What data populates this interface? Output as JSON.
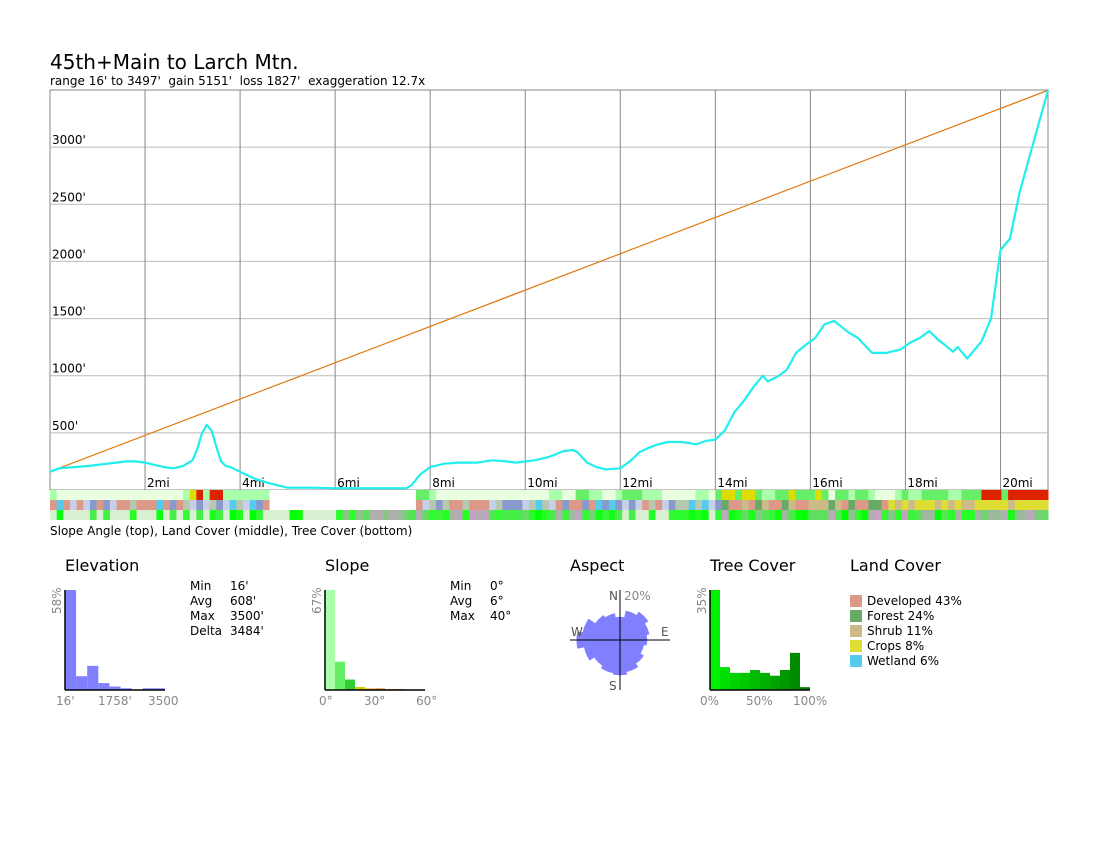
{
  "header": {
    "title": "45th+Main to Larch Mtn.",
    "subtitle": "range 16' to 3497'  gain 5151'  loss 1827'  exaggeration 12.7x"
  },
  "chart_data": {
    "type": "line",
    "x_unit": "mi",
    "y_unit": "ft",
    "xlim": [
      0,
      21
    ],
    "ylim": [
      0,
      3500
    ],
    "x_ticks": [
      {
        "value": 2,
        "label": "2mi"
      },
      {
        "value": 4,
        "label": "4mi"
      },
      {
        "value": 6,
        "label": "6mi"
      },
      {
        "value": 8,
        "label": "8mi"
      },
      {
        "value": 10,
        "label": "10mi"
      },
      {
        "value": 12,
        "label": "12mi"
      },
      {
        "value": 14,
        "label": "14mi"
      },
      {
        "value": 16,
        "label": "16mi"
      },
      {
        "value": 18,
        "label": "18mi"
      },
      {
        "value": 20,
        "label": "20mi"
      }
    ],
    "y_ticks": [
      {
        "value": 500,
        "label": "500'"
      },
      {
        "value": 1000,
        "label": "1000'"
      },
      {
        "value": 1500,
        "label": "1500'"
      },
      {
        "value": 2000,
        "label": "2000'"
      },
      {
        "value": 2500,
        "label": "2500'"
      },
      {
        "value": 3000,
        "label": "3000'"
      }
    ],
    "grid": true,
    "series": [
      {
        "color": "#22eeee",
        "x": [
          0,
          0.2,
          0.5,
          0.8,
          1.0,
          1.2,
          1.4,
          1.6,
          1.8,
          2.0,
          2.2,
          2.4,
          2.6,
          2.8,
          3.0,
          3.1,
          3.2,
          3.3,
          3.4,
          3.5,
          3.6,
          3.7,
          3.8,
          4.0,
          4.3,
          4.6,
          4.8,
          5.0,
          5.5,
          6.0,
          6.5,
          7.0,
          7.3,
          7.5,
          7.6,
          7.8,
          8.0,
          8.3,
          8.6,
          9.0,
          9.3,
          9.6,
          9.8,
          10.2,
          10.5,
          10.8,
          11.0,
          11.1,
          11.3,
          11.5,
          11.7,
          12.0,
          12.2,
          12.4,
          12.6,
          12.8,
          13.0,
          13.3,
          13.6,
          13.8,
          14.0,
          14.2,
          14.4,
          14.6,
          14.8,
          15.0,
          15.1,
          15.3,
          15.5,
          15.7,
          15.9,
          16.1,
          16.3,
          16.5,
          16.8,
          17.0,
          17.3,
          17.6,
          17.9,
          18.1,
          18.3,
          18.5,
          18.7,
          18.8,
          19.0,
          19.1,
          19.3,
          19.6,
          19.8,
          20.0,
          20.2,
          20.4,
          20.6,
          20.8,
          21.0
        ],
        "y": [
          160,
          190,
          200,
          210,
          220,
          230,
          240,
          250,
          250,
          240,
          220,
          200,
          190,
          210,
          260,
          360,
          500,
          570,
          520,
          380,
          250,
          210,
          200,
          160,
          100,
          60,
          40,
          20,
          20,
          16,
          16,
          16,
          16,
          16,
          40,
          140,
          200,
          230,
          240,
          240,
          260,
          250,
          240,
          260,
          290,
          340,
          350,
          330,
          240,
          200,
          180,
          190,
          250,
          330,
          370,
          400,
          420,
          420,
          400,
          430,
          440,
          520,
          680,
          780,
          900,
          1000,
          950,
          990,
          1050,
          1200,
          1270,
          1330,
          1450,
          1480,
          1380,
          1330,
          1200,
          1200,
          1230,
          1290,
          1330,
          1390,
          1310,
          1280,
          1210,
          1250,
          1150,
          1300,
          1500,
          2100,
          2200,
          2600,
          2900,
          3200,
          3497
        ]
      },
      {
        "color": "#e07810",
        "x": [
          0,
          21
        ],
        "y": [
          160,
          3497
        ]
      }
    ]
  },
  "strips": {
    "caption": "Slope Angle (top), Land Cover (middle), Tree Cover (bottom)"
  },
  "panels": {
    "elevation": {
      "title": "Elevation",
      "ymax_label": "58%",
      "x_labels": [
        "16'",
        "1758'",
        "3500"
      ],
      "stat_keys": [
        "Min",
        "Avg",
        "Max",
        "Delta"
      ],
      "stat_values": [
        "16'",
        "608'",
        "3500'",
        "3484'"
      ],
      "bar_color": "#8080ff",
      "histogram": [
        58,
        8,
        14,
        4,
        2,
        1,
        0,
        1,
        1
      ]
    },
    "slope": {
      "title": "Slope",
      "ymax_label": "67%",
      "x_labels": [
        "0°",
        "30°",
        "60°"
      ],
      "stat_keys": [
        "Min",
        "Avg",
        "Max"
      ],
      "stat_values": [
        "0°",
        "6°",
        "40°"
      ],
      "histogram": [
        67,
        19,
        7,
        2,
        1,
        1,
        0.5,
        0.5,
        0,
        0
      ],
      "bar_colors": [
        "#aaffaa",
        "#66ee66",
        "#33cc33",
        "#cccc00",
        "#dd9900",
        "#dd6600",
        "#cc3300",
        "#aa2200",
        "#882200",
        "#662200"
      ]
    },
    "aspect": {
      "title": "Aspect",
      "ring_label": "20%",
      "compass": {
        "n": "N",
        "s": "S",
        "e": "E",
        "w": "W"
      },
      "fill_color": "#8080ff",
      "sectors": [
        17,
        22,
        25,
        22,
        20,
        18,
        21,
        24,
        26,
        25,
        23,
        27,
        32,
        28,
        22,
        20
      ]
    },
    "tree_cover": {
      "title": "Tree Cover",
      "ymax_label": "35%",
      "x_labels": [
        "0%",
        "50%",
        "100%"
      ],
      "histogram": [
        35,
        8,
        6,
        6,
        7,
        6,
        5,
        7,
        13,
        1
      ],
      "bar_colors": [
        "#00ee00",
        "#00e000",
        "#00d400",
        "#00c800",
        "#00bc00",
        "#00b000",
        "#00a400",
        "#009800",
        "#008c00",
        "#008000"
      ]
    },
    "land_cover": {
      "title": "Land Cover",
      "items": [
        {
          "label": "Developed 43%",
          "color": "#dd9988"
        },
        {
          "label": "Forest 24%",
          "color": "#66aa66"
        },
        {
          "label": "Shrub 11%",
          "color": "#ccbb88"
        },
        {
          "label": "Crops 8%",
          "color": "#dddd33"
        },
        {
          "label": "Wetland 6%",
          "color": "#55ccee"
        }
      ]
    }
  }
}
